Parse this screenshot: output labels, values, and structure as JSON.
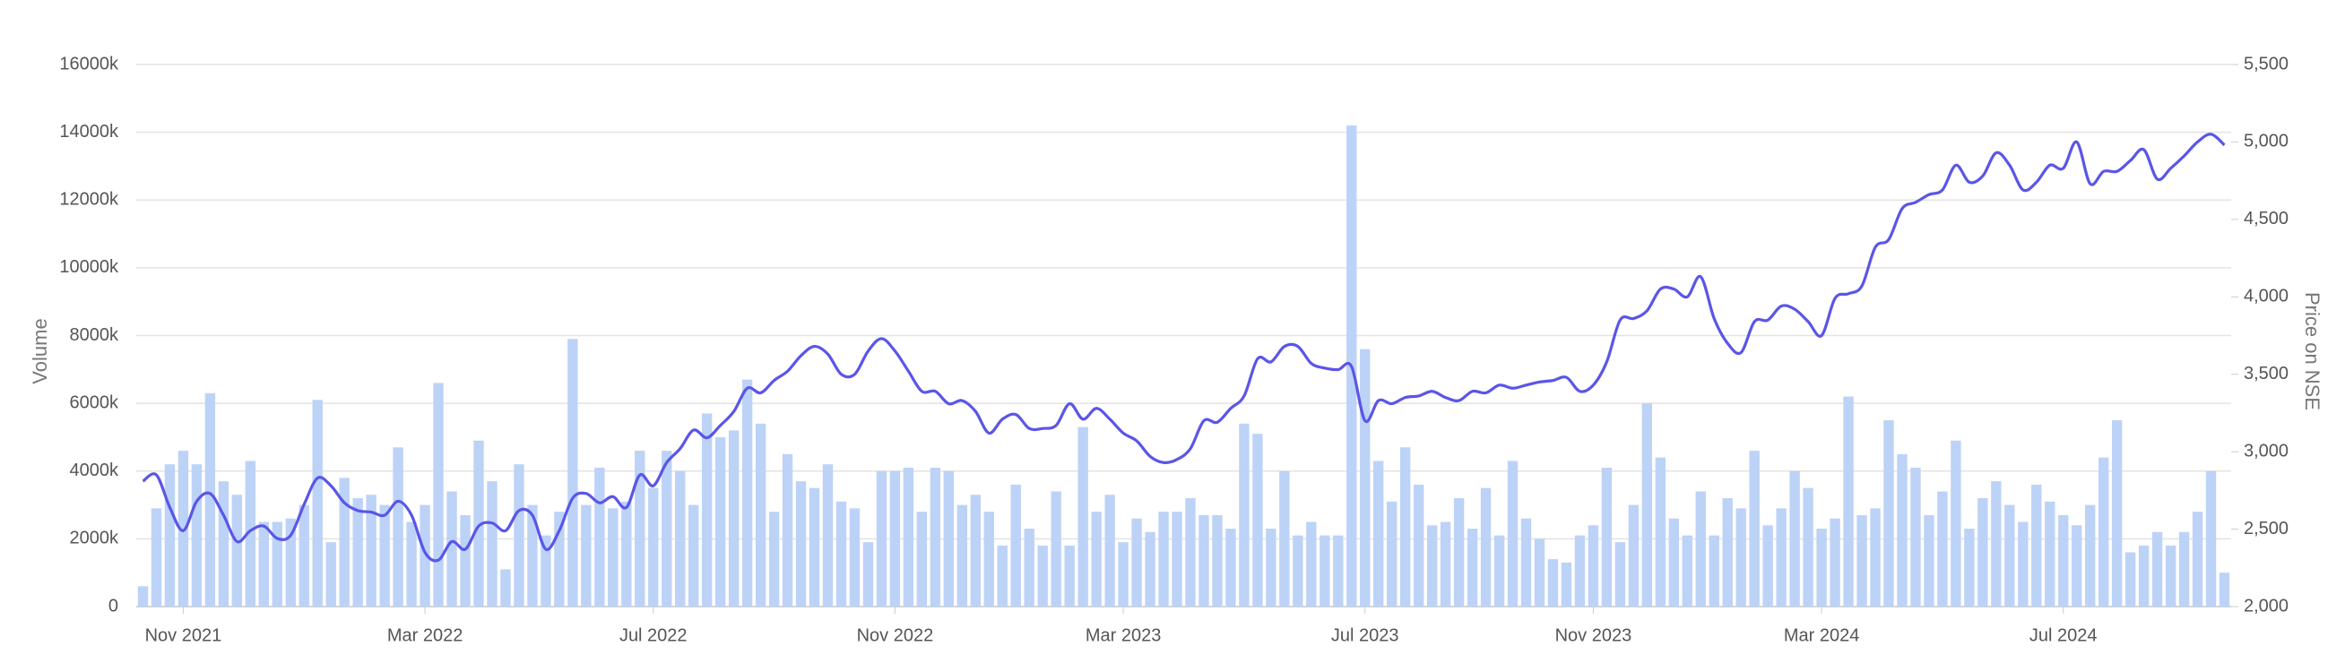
{
  "chart_data": {
    "type": "bar",
    "y_label": "Volume",
    "y2_label": "Price on NSE",
    "grid": true,
    "ylim": [
      0,
      16000
    ],
    "yticks": [
      0,
      {
        "value": 2000,
        "label": "2000k"
      },
      {
        "value": 4000,
        "label": "4000k"
      },
      {
        "value": 6000,
        "label": "6000k"
      },
      {
        "value": 8000,
        "label": "8000k"
      },
      {
        "value": 10000,
        "label": "10000k"
      },
      {
        "value": 12000,
        "label": "12000k"
      },
      {
        "value": 14000,
        "label": "14000k"
      },
      {
        "value": 16000,
        "label": "16000k"
      }
    ],
    "y2lim": [
      2000,
      5500
    ],
    "y2ticks": [
      {
        "value": 2000,
        "label": "2,000"
      },
      {
        "value": 2500,
        "label": "2,500"
      },
      {
        "value": 3000,
        "label": "3,000"
      },
      {
        "value": 3500,
        "label": "3,500"
      },
      {
        "value": 4000,
        "label": "4,000"
      },
      {
        "value": 4500,
        "label": "4,500"
      },
      {
        "value": 5000,
        "label": "5,000"
      },
      {
        "value": 5500,
        "label": "5,500"
      }
    ],
    "categories": [
      null,
      null,
      null,
      "Nov 2021",
      null,
      null,
      null,
      null,
      null,
      null,
      null,
      null,
      null,
      null,
      null,
      null,
      null,
      null,
      null,
      null,
      null,
      "Mar 2022",
      null,
      null,
      null,
      null,
      null,
      null,
      null,
      null,
      null,
      null,
      null,
      null,
      null,
      null,
      null,
      null,
      "Jul 2022",
      null,
      null,
      null,
      null,
      null,
      null,
      null,
      null,
      null,
      null,
      null,
      null,
      null,
      null,
      null,
      null,
      null,
      "Nov 2022",
      null,
      null,
      null,
      null,
      null,
      null,
      null,
      null,
      null,
      null,
      null,
      null,
      null,
      null,
      null,
      null,
      "Mar 2023",
      null,
      null,
      null,
      null,
      null,
      null,
      null,
      null,
      null,
      null,
      null,
      null,
      null,
      null,
      null,
      null,
      null,
      "Jul 2023",
      null,
      null,
      null,
      null,
      null,
      null,
      null,
      null,
      null,
      null,
      null,
      null,
      null,
      null,
      null,
      null,
      "Nov 2023",
      null,
      null,
      null,
      null,
      null,
      null,
      null,
      null,
      null,
      null,
      null,
      null,
      null,
      null,
      null,
      null,
      "Mar 2024",
      null,
      null,
      null,
      null,
      null,
      null,
      null,
      null,
      null,
      null,
      null,
      null,
      null,
      null,
      null,
      null,
      null,
      "Jul 2024",
      null,
      null,
      null,
      null,
      null,
      null,
      null,
      null,
      null,
      null,
      null,
      null
    ],
    "series": [
      {
        "type": "bar",
        "color": "#bcd3f7",
        "values": [
          600,
          2900,
          4200,
          4600,
          4200,
          6300,
          3700,
          3300,
          4300,
          2500,
          2500,
          2600,
          3000,
          6100,
          1900,
          3800,
          3200,
          3300,
          3000,
          4700,
          2500,
          3000,
          6600,
          3400,
          2700,
          4900,
          3700,
          1100,
          4200,
          3000,
          2100,
          2800,
          7900,
          3000,
          4100,
          2900,
          3100,
          4600,
          3500,
          4600,
          4000,
          3000,
          5700,
          5000,
          5200,
          6700,
          5400,
          2800,
          4500,
          3700,
          3500,
          4200,
          3100,
          2900,
          1900,
          4000,
          4000,
          4100,
          2800,
          4100,
          4000,
          3000,
          3300,
          2800,
          1800,
          3600,
          2300,
          1800,
          3400,
          1800,
          5300,
          2800,
          3300,
          1900,
          2600,
          2200,
          2800,
          2800,
          3200,
          2700,
          2700,
          2300,
          5400,
          5100,
          2300,
          4000,
          2100,
          2500,
          2100,
          2100,
          14200,
          7600,
          4300,
          3100,
          4700,
          3600,
          2400,
          2500,
          3200,
          2300,
          3500,
          2100,
          4300,
          2600,
          2000,
          1400,
          1300,
          2100,
          2400,
          4100,
          1900,
          3000,
          6000,
          4400,
          2600,
          2100,
          3400,
          2100,
          3200,
          2900,
          4600,
          2400,
          2900,
          4000,
          3500,
          2300,
          2600,
          6200,
          2700,
          2900,
          5500,
          4500,
          4100,
          2700,
          3400,
          4900,
          2300,
          3200,
          3700,
          3000,
          2500,
          3600,
          3100,
          2700,
          2400,
          3000,
          4400,
          5500,
          1600,
          1800,
          2200,
          1800,
          2200,
          2800,
          4000,
          1000
        ]
      },
      {
        "type": "line",
        "axis": "y2",
        "color": "#5b55e8",
        "values": [
          2810,
          2850,
          2640,
          2490,
          2680,
          2730,
          2590,
          2420,
          2490,
          2520,
          2440,
          2460,
          2660,
          2830,
          2780,
          2670,
          2620,
          2610,
          2590,
          2680,
          2590,
          2350,
          2300,
          2420,
          2370,
          2520,
          2540,
          2490,
          2620,
          2590,
          2370,
          2490,
          2700,
          2730,
          2670,
          2710,
          2640,
          2850,
          2780,
          2930,
          3020,
          3140,
          3090,
          3170,
          3260,
          3410,
          3380,
          3460,
          3520,
          3620,
          3680,
          3630,
          3500,
          3500,
          3650,
          3730,
          3650,
          3520,
          3390,
          3390,
          3310,
          3330,
          3260,
          3120,
          3210,
          3240,
          3150,
          3150,
          3170,
          3310,
          3210,
          3280,
          3210,
          3120,
          3070,
          2970,
          2930,
          2950,
          3020,
          3200,
          3190,
          3280,
          3360,
          3600,
          3580,
          3680,
          3680,
          3570,
          3540,
          3530,
          3550,
          3200,
          3330,
          3310,
          3350,
          3360,
          3390,
          3350,
          3330,
          3390,
          3380,
          3430,
          3410,
          3430,
          3450,
          3460,
          3480,
          3390,
          3430,
          3580,
          3850,
          3860,
          3910,
          4050,
          4050,
          4000,
          4130,
          3860,
          3700,
          3640,
          3840,
          3850,
          3940,
          3920,
          3840,
          3750,
          3990,
          4020,
          4070,
          4320,
          4370,
          4570,
          4610,
          4660,
          4690,
          4850,
          4740,
          4780,
          4930,
          4850,
          4690,
          4740,
          4850,
          4830,
          5000,
          4730,
          4810,
          4810,
          4880,
          4950,
          4760,
          4830,
          4910,
          5000,
          5050,
          4980
        ]
      }
    ]
  }
}
